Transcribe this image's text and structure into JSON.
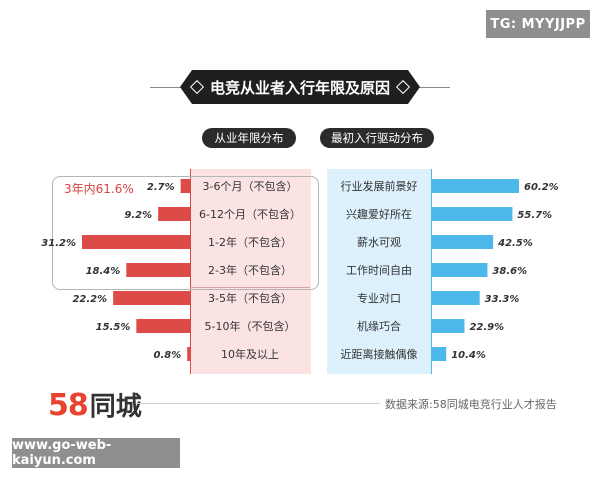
{
  "watermark_top": "TG: MYYJJPP",
  "watermark_bottom": "www.go-web-kaiyun.com",
  "title": "电竞从业者入行年限及原因",
  "logo": {
    "num": "58",
    "text": "同城"
  },
  "source": "数据来源:58同城电竞行业人才报告",
  "colors": {
    "left_bar": "#dd4b48",
    "right_bar": "#4db8ea",
    "left_panel": "#fce3e3",
    "right_panel": "#dcf1fb"
  },
  "chart_data": [
    {
      "type": "bar",
      "orientation": "horizontal",
      "direction": "leftward",
      "title": "从业年限分布",
      "group_label": "3年内61.6%",
      "categories": [
        "3-6个月（不包含）",
        "6-12个月（不包含）",
        "1-2年（不包含）",
        "2-3年（不包含）",
        "3-5年（不包含）",
        "5-10年（不包含）",
        "10年及以上"
      ],
      "values": [
        2.7,
        9.2,
        31.2,
        18.4,
        22.2,
        15.5,
        0.8
      ],
      "value_labels": [
        "2.7%",
        "9.2%",
        "31.2%",
        "18.4%",
        "22.2%",
        "15.5%",
        "0.8%"
      ],
      "unit": "%"
    },
    {
      "type": "bar",
      "orientation": "horizontal",
      "direction": "rightward",
      "title": "最初入行驱动分布",
      "categories": [
        "行业发展前景好",
        "兴趣爱好所在",
        "薪水可观",
        "工作时间自由",
        "专业对口",
        "机缘巧合",
        "近距离接触偶像"
      ],
      "values": [
        60.2,
        55.7,
        42.5,
        38.6,
        33.3,
        22.9,
        10.4
      ],
      "value_labels": [
        "60.2%",
        "55.7%",
        "42.5%",
        "38.6%",
        "33.3%",
        "22.9%",
        "10.4%"
      ],
      "unit": "%"
    }
  ]
}
